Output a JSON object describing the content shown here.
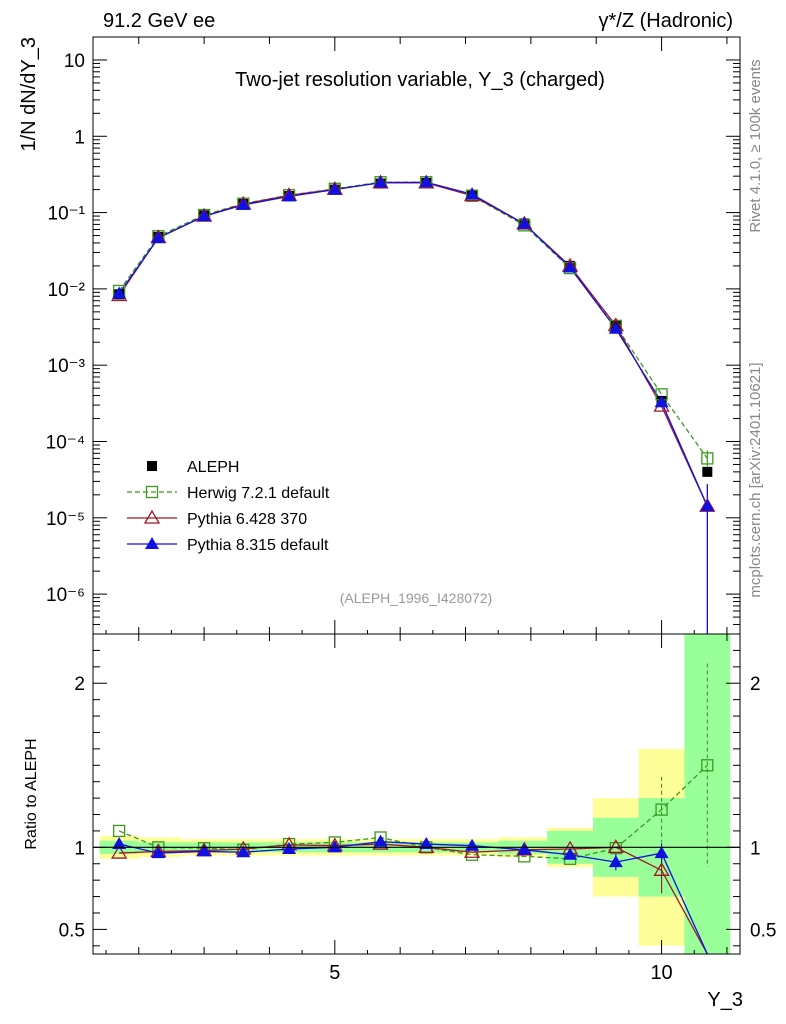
{
  "header": {
    "left": "91.2 GeV ee",
    "right": "γ*/Z (Hadronic)"
  },
  "side_labels": {
    "rivet": "Rivet 4.1.0, ≥ 100k events",
    "mcplots": "mcplots.cern.ch [arXiv:2401.10621]"
  },
  "chart_data": [
    {
      "type": "line",
      "panel": "main",
      "title": "Two-jet resolution variable, Y_3 (charged)",
      "ylabel": "1/N  dN/dY_3",
      "xlabel": "Y_3",
      "yscale": "log",
      "ylim": [
        3e-07,
        20
      ],
      "xlim": [
        1.3,
        11.2
      ],
      "y_tick_labels": [
        "10",
        "1",
        "10⁻¹",
        "10⁻²",
        "10⁻³",
        "10⁻⁴",
        "10⁻⁵",
        "10⁻⁶"
      ],
      "analysis_id": "(ALEPH_1996_I428072)",
      "legend_position": "bottom-left",
      "x": [
        1.7,
        2.3,
        3.0,
        3.6,
        4.3,
        5.0,
        5.7,
        6.4,
        7.1,
        7.9,
        8.6,
        9.3,
        10.0,
        10.7
      ],
      "series": [
        {
          "name": "ALEPH",
          "color": "#000000",
          "style": "data",
          "values": [
            0.0085,
            0.048,
            0.092,
            0.13,
            0.165,
            0.2,
            0.24,
            0.245,
            0.172,
            0.072,
            0.02,
            0.0033,
            0.00034,
            4e-05
          ]
        },
        {
          "name": "Herwig 7.2.1 default",
          "color": "#3a9a1e",
          "style": "open-square-dashed",
          "values": [
            0.0094,
            0.049,
            0.093,
            0.131,
            0.169,
            0.205,
            0.25,
            0.25,
            0.166,
            0.068,
            0.0187,
            0.00328,
            0.000415,
            6e-05
          ]
        },
        {
          "name": "Pythia 6.428 370",
          "color": "#a01828",
          "style": "open-triangle",
          "values": [
            0.0082,
            0.047,
            0.09,
            0.129,
            0.168,
            0.202,
            0.245,
            0.245,
            0.167,
            0.071,
            0.0199,
            0.0033,
            0.000291,
            1.42e-05
          ]
        },
        {
          "name": "Pythia 8.315 default",
          "color": "#1010e0",
          "style": "filled-triangle",
          "values": [
            0.0087,
            0.0465,
            0.0895,
            0.126,
            0.163,
            0.2,
            0.248,
            0.25,
            0.174,
            0.071,
            0.0191,
            0.003,
            0.000327,
            1.42e-05
          ]
        }
      ]
    },
    {
      "type": "line",
      "panel": "ratio",
      "ylabel": "Ratio to ALEPH",
      "xlabel": "Y_3",
      "ylim": [
        0.35,
        2.3
      ],
      "xlim": [
        1.3,
        11.2
      ],
      "y_tick_labels": [
        "0.5",
        "1",
        "2"
      ],
      "x_tick_labels": [
        "5",
        "10"
      ],
      "x": [
        1.7,
        2.3,
        3.0,
        3.6,
        4.3,
        5.0,
        5.7,
        6.4,
        7.1,
        7.9,
        8.6,
        9.3,
        10.0,
        10.7
      ],
      "band_stat": [
        0.04,
        0.03,
        0.03,
        0.03,
        0.03,
        0.03,
        0.03,
        0.03,
        0.03,
        0.04,
        0.1,
        0.18,
        0.3,
        1.5
      ],
      "band_total": [
        0.07,
        0.06,
        0.05,
        0.05,
        0.05,
        0.05,
        0.05,
        0.05,
        0.05,
        0.06,
        0.12,
        0.3,
        0.6,
        1.5
      ],
      "series": [
        {
          "name": "Herwig 7.2.1 default",
          "values": [
            1.1,
            1.0,
            0.995,
            0.985,
            1.02,
            1.03,
            1.06,
            1.0,
            0.955,
            0.945,
            0.93,
            0.995,
            1.23,
            1.5
          ]
        },
        {
          "name": "Pythia 6.428 370",
          "values": [
            0.965,
            0.975,
            0.98,
            0.99,
            1.015,
            1.01,
            1.02,
            1.0,
            0.97,
            0.985,
            0.99,
            1.0,
            0.86,
            0.35
          ]
        },
        {
          "name": "Pythia 8.315 default",
          "values": [
            1.02,
            0.965,
            0.975,
            0.97,
            0.99,
            1.0,
            1.035,
            1.02,
            1.01,
            0.985,
            0.955,
            0.91,
            0.965,
            0.35
          ]
        }
      ]
    }
  ]
}
